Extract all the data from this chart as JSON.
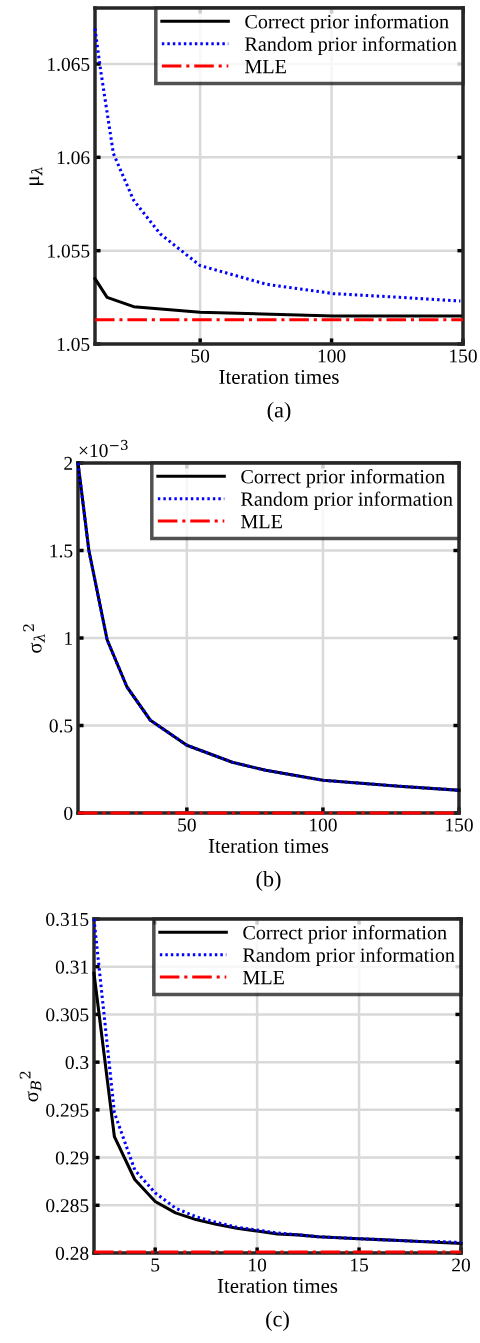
{
  "chart_data": [
    {
      "type": "line",
      "xlabel": "Iteration times",
      "ylabel": "μ$_{λ}$",
      "xlim": [
        10,
        150
      ],
      "xticks": [
        50,
        100,
        150
      ],
      "ylim": [
        1.05,
        1.068
      ],
      "yticks": [
        1.05,
        1.055,
        1.06,
        1.065
      ],
      "grid": true,
      "legend": "top right",
      "annotations": [
        "(a)"
      ],
      "series": [
        {
          "name": "Correct prior information",
          "color": "#000000",
          "line_style": "solid",
          "x": [
            10,
            14.6,
            24.7,
            50,
            100.6,
            149
          ],
          "values": [
            1.0535,
            1.0525,
            1.052,
            1.0517,
            1.0515,
            1.0515
          ]
        },
        {
          "name": "Random prior information",
          "color": "#0000ff",
          "line_style": "dotted",
          "x": [
            10,
            12,
            17,
            24.7,
            34.8,
            50,
            75.3,
            100.6,
            126,
            149
          ],
          "values": [
            1.0669,
            1.0648,
            1.0602,
            1.0577,
            1.0559,
            1.0542,
            1.0532,
            1.0527,
            1.0525,
            1.0523
          ]
        },
        {
          "name": "MLE",
          "color": "#ff0000",
          "line_style": "dashdot",
          "x": [
            10,
            150
          ],
          "values": [
            1.0513,
            1.0513
          ]
        }
      ]
    },
    {
      "type": "line",
      "xlabel": "Iteration times",
      "ylabel": "σ$_{λ}$$^{2}$",
      "xlim": [
        10,
        150
      ],
      "xticks": [
        50,
        100,
        150
      ],
      "ylim": [
        0,
        2
      ],
      "yticks": [
        0,
        0.5,
        1,
        1.5,
        2
      ],
      "grid": true,
      "legend": "top right",
      "annotations": [
        "×10$^{−3}$",
        "(b)"
      ],
      "series": [
        {
          "name": "Correct prior information",
          "color": "#000000",
          "line_style": "solid",
          "x": [
            10,
            14,
            20.7,
            28,
            36.6,
            50,
            66.7,
            79,
            100,
            128,
            150
          ],
          "values": [
            2.0,
            1.5,
            0.99,
            0.72,
            0.53,
            0.387,
            0.29,
            0.244,
            0.187,
            0.153,
            0.13
          ]
        },
        {
          "name": "Random prior information",
          "color": "#0000ff",
          "line_style": "dotted",
          "x": [
            10,
            14,
            20.7,
            28,
            36.6,
            50,
            66.7,
            79,
            100,
            128,
            150
          ],
          "values": [
            2.0,
            1.5,
            0.99,
            0.72,
            0.53,
            0.387,
            0.29,
            0.244,
            0.187,
            0.153,
            0.13
          ]
        },
        {
          "name": "MLE",
          "color": "#ff0000",
          "line_style": "dashdot",
          "x": [
            10,
            150
          ],
          "values": [
            0,
            0
          ]
        }
      ]
    },
    {
      "type": "line",
      "xlabel": "Iteration times",
      "ylabel": "σ$_{B}$$^{2}$",
      "xlim": [
        2,
        20
      ],
      "xticks": [
        5,
        10,
        15,
        20
      ],
      "ylim": [
        0.28,
        0.315
      ],
      "yticks": [
        0.28,
        0.285,
        0.29,
        0.295,
        0.3,
        0.305,
        0.31,
        0.315
      ],
      "grid": true,
      "legend": "top right",
      "annotations": [
        "(c)"
      ],
      "series": [
        {
          "name": "Correct prior information",
          "color": "#000000",
          "line_style": "solid",
          "x": [
            2,
            3,
            4,
            5,
            6,
            7,
            8,
            9,
            10,
            11,
            12,
            13,
            14,
            15,
            16,
            17,
            18,
            19,
            20
          ],
          "values": [
            0.3093,
            0.2922,
            0.2877,
            0.2854,
            0.2842,
            0.2835,
            0.283,
            0.2826,
            0.2823,
            0.282,
            0.2819,
            0.2817,
            0.2816,
            0.2815,
            0.2814,
            0.2813,
            0.2812,
            0.2811,
            0.281
          ]
        },
        {
          "name": "Random prior information",
          "color": "#0000ff",
          "line_style": "dotted",
          "x": [
            2,
            3,
            4,
            5,
            6,
            7,
            8,
            9,
            10,
            11,
            12,
            13,
            14,
            15,
            16,
            17,
            18,
            19,
            20
          ],
          "values": [
            0.315,
            0.2947,
            0.2887,
            0.2863,
            0.2847,
            0.2838,
            0.2832,
            0.2827,
            0.2824,
            0.2821,
            0.2819,
            0.2817,
            0.2816,
            0.2815,
            0.2814,
            0.2813,
            0.2812,
            0.2812,
            0.2811
          ]
        },
        {
          "name": "MLE",
          "color": "#ff0000",
          "line_style": "dashdot",
          "x": [
            2,
            20
          ],
          "values": [
            0.2801,
            0.2801
          ]
        }
      ]
    }
  ]
}
